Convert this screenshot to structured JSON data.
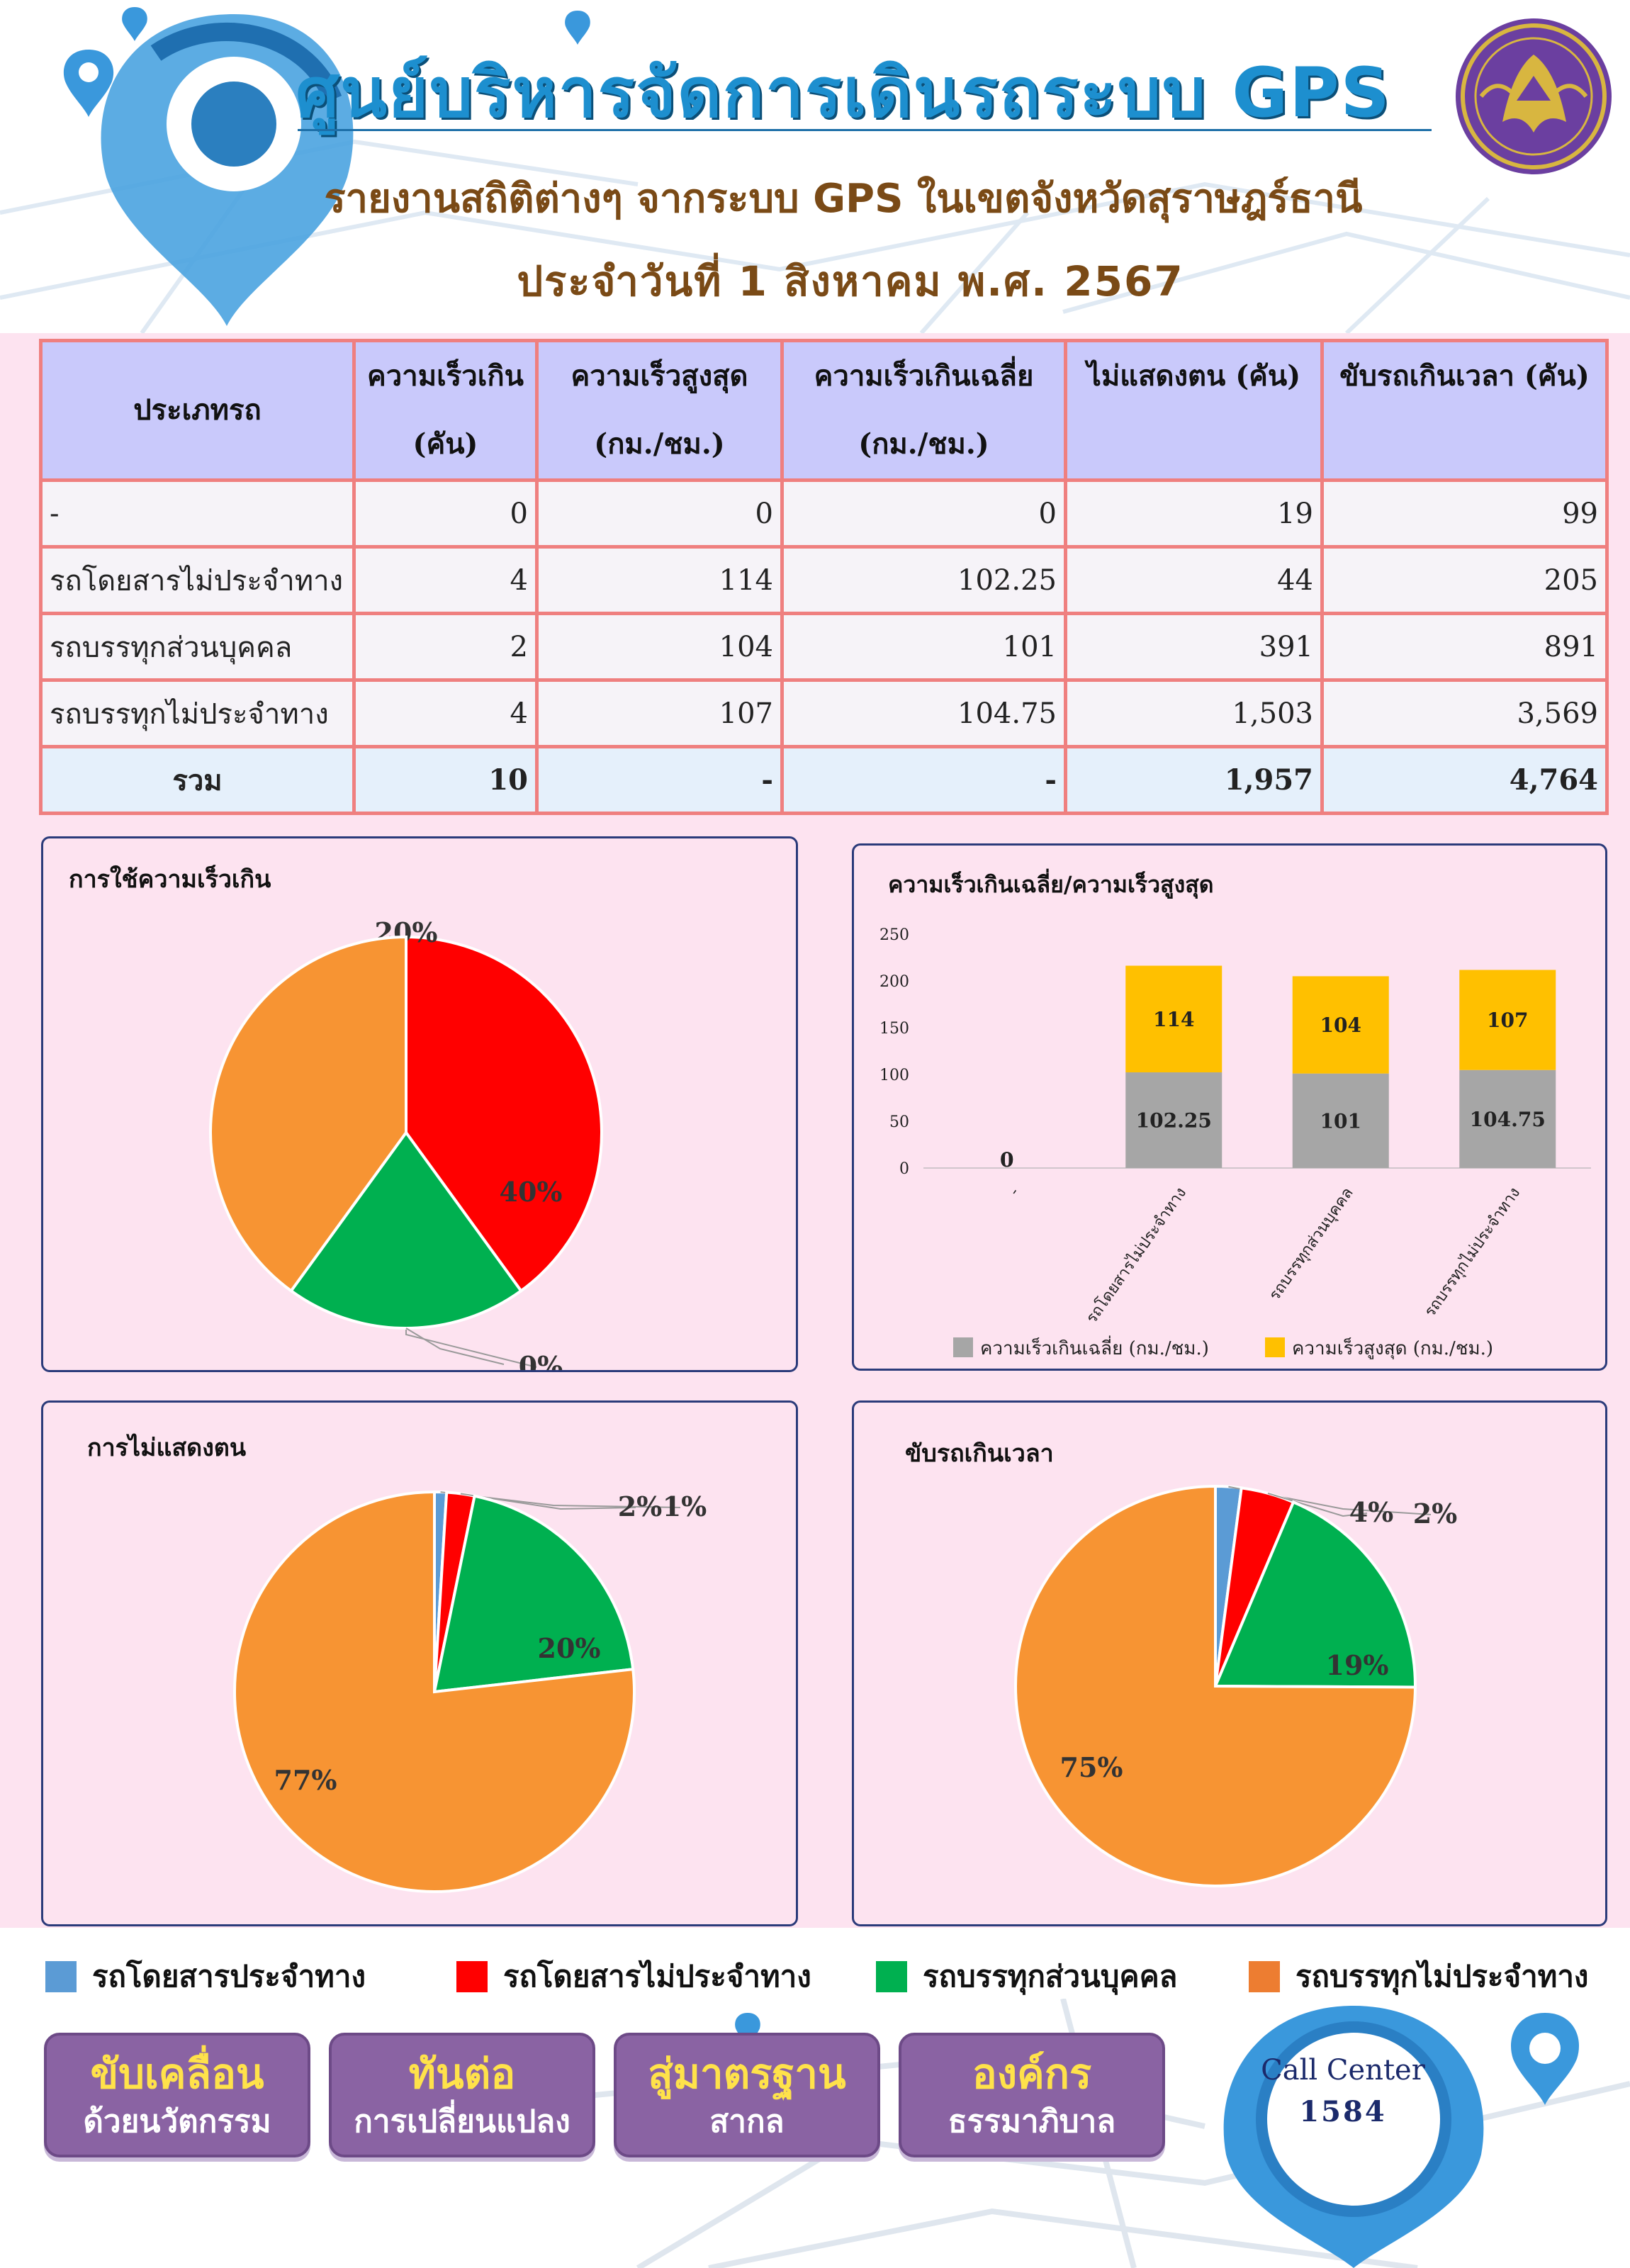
{
  "header": {
    "title": "ศูนย์บริหารจัดการเดินรถระบบ GPS",
    "subtitle": "รายงานสถิติต่างๆ จากระบบ GPS ในเขตจังหวัดสุราษฎร์ธานี",
    "date": "ประจำวันที่   1   สิงหาคม   พ.ศ. 2567"
  },
  "colors": {
    "bus_fixed": "#5b9bd5",
    "bus_nonfixed": "#ff0000",
    "truck_private": "#00b050",
    "truck_nonfixed": "#f79433",
    "bar_avg": "#a6a6a6",
    "bar_max": "#ffc000"
  },
  "table": {
    "headers": [
      [
        "ประเภทรถ"
      ],
      [
        "ความเร็วเกิน",
        "(คัน)"
      ],
      [
        "ความเร็วสูงสุด",
        "(กม./ชม.)"
      ],
      [
        "ความเร็วเกินเฉลี่ย",
        "(กม./ชม.)"
      ],
      [
        "ไม่แสดงตน (คัน)"
      ],
      [
        "ขับรถเกินเวลา (คัน)"
      ]
    ],
    "rows": [
      [
        "-",
        "0",
        "0",
        "0",
        "19",
        "99"
      ],
      [
        "รถโดยสารไม่ประจำทาง",
        "4",
        "114",
        "102.25",
        "44",
        "205"
      ],
      [
        "รถบรรทุกส่วนบุคคล",
        "2",
        "104",
        "101",
        "391",
        "891"
      ],
      [
        "รถบรรทุกไม่ประจำทาง",
        "4",
        "107",
        "104.75",
        "1,503",
        "3,569"
      ]
    ],
    "total": [
      "รวม",
      "10",
      "-",
      "-",
      "1,957",
      "4,764"
    ]
  },
  "legend": [
    "รถโดยสารประจำทาง",
    "รถโดยสารไม่ประจำทาง",
    "รถบรรทุกส่วนบุคคล",
    "รถบรรทุกไม่ประจำทาง"
  ],
  "slogans": [
    {
      "line1": "ขับเคลื่อน",
      "line2": "ด้วยนวัตกรรม"
    },
    {
      "line1": "ทันต่อ",
      "line2": "การเปลี่ยนแปลง"
    },
    {
      "line1": "สู่มาตรฐาน",
      "line2": "สากล"
    },
    {
      "line1": "องค์กร",
      "line2": "ธรรมาภิบาล"
    }
  ],
  "call_center": {
    "label": "Call Center",
    "number": "1584"
  },
  "chart_data": [
    {
      "id": "speeding",
      "type": "pie",
      "title": "การใช้ความเร็วเกิน",
      "slices": [
        {
          "name": "รถโดยสารประจำทาง",
          "value": 0,
          "label": "0%"
        },
        {
          "name": "รถโดยสารไม่ประจำทาง",
          "value": 40,
          "label": "40%"
        },
        {
          "name": "รถบรรทุกส่วนบุคคล",
          "value": 20,
          "label": "20%"
        },
        {
          "name": "รถบรรทุกไม่ประจำทาง",
          "value": 40,
          "label": "40%"
        }
      ]
    },
    {
      "id": "speed-bars",
      "type": "bar",
      "stacked": true,
      "title": "ความเร็วเกินเฉลี่ย/ความเร็วสูงสุด",
      "categories": [
        "-",
        "รถโดยสารไม่ประจำทาง",
        "รถบรรทุกส่วนบุคคล",
        "รถบรรทุกไม่ประจำทาง"
      ],
      "series": [
        {
          "name": "ความเร็วเกินเฉลี่ย (กม./ชม.)",
          "values": [
            0,
            102.25,
            101,
            104.75
          ]
        },
        {
          "name": "ความเร็วสูงสุด (กม./ชม.)",
          "values": [
            0,
            114,
            104,
            107
          ]
        }
      ],
      "ylim": [
        0,
        250
      ],
      "yticks": [
        0,
        50,
        100,
        150,
        200,
        250
      ],
      "legend_position": "bottom"
    },
    {
      "id": "no-identify",
      "type": "pie",
      "title": "การไม่แสดงตน",
      "slices": [
        {
          "name": "รถโดยสารประจำทาง",
          "value": 19,
          "label": "1%"
        },
        {
          "name": "รถโดยสารไม่ประจำทาง",
          "value": 44,
          "label": "2%"
        },
        {
          "name": "รถบรรทุกส่วนบุคคล",
          "value": 391,
          "label": "20%"
        },
        {
          "name": "รถบรรทุกไม่ประจำทาง",
          "value": 1503,
          "label": "77%"
        }
      ]
    },
    {
      "id": "overtime",
      "type": "pie",
      "title": "ขับรถเกินเวลา",
      "slices": [
        {
          "name": "รถโดยสารประจำทาง",
          "value": 99,
          "label": "2%"
        },
        {
          "name": "รถโดยสารไม่ประจำทาง",
          "value": 205,
          "label": "4%"
        },
        {
          "name": "รถบรรทุกส่วนบุคคล",
          "value": 891,
          "label": "19%"
        },
        {
          "name": "รถบรรทุกไม่ประจำทาง",
          "value": 3569,
          "label": "75%"
        }
      ]
    }
  ]
}
